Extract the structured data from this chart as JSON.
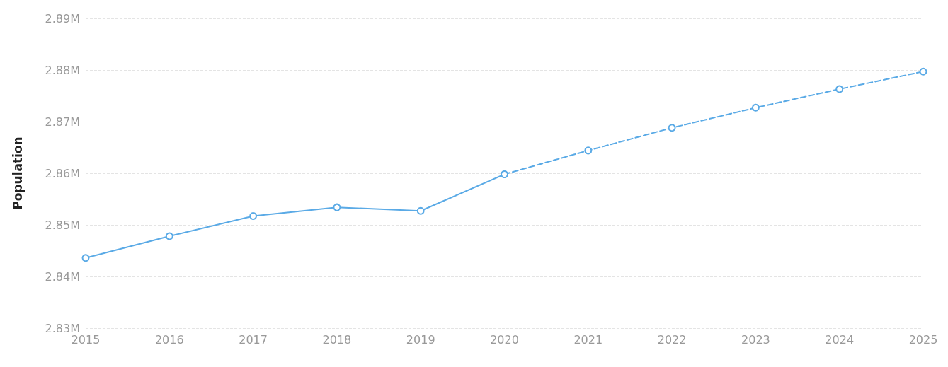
{
  "chart_data": {
    "type": "line",
    "ylabel": "Population",
    "categories": [
      "2015",
      "2016",
      "2017",
      "2018",
      "2019",
      "2020",
      "2021",
      "2022",
      "2023",
      "2024",
      "2025"
    ],
    "series": [
      {
        "color": "#5aaae6",
        "line_style": "solid",
        "values": [
          2.8436,
          2.8478,
          2.8517,
          2.8534,
          2.8527,
          2.8598,
          null,
          null,
          null,
          null,
          null
        ]
      },
      {
        "color": "#5aaae6",
        "line_style": "dashed",
        "values": [
          null,
          null,
          null,
          null,
          null,
          2.8598,
          2.8644,
          2.8688,
          2.8727,
          2.8763,
          2.8797
        ]
      }
    ],
    "ylim": [
      2.83,
      2.89
    ],
    "yticks": [
      {
        "value": 2.83,
        "label": "2.83M"
      },
      {
        "value": 2.84,
        "label": "2.84M"
      },
      {
        "value": 2.85,
        "label": "2.85M"
      },
      {
        "value": 2.86,
        "label": "2.86M"
      },
      {
        "value": 2.87,
        "label": "2.87M"
      },
      {
        "value": 2.88,
        "label": "2.88M"
      },
      {
        "value": 2.89,
        "label": "2.89M"
      }
    ],
    "grid": "y",
    "marker": "circle"
  }
}
